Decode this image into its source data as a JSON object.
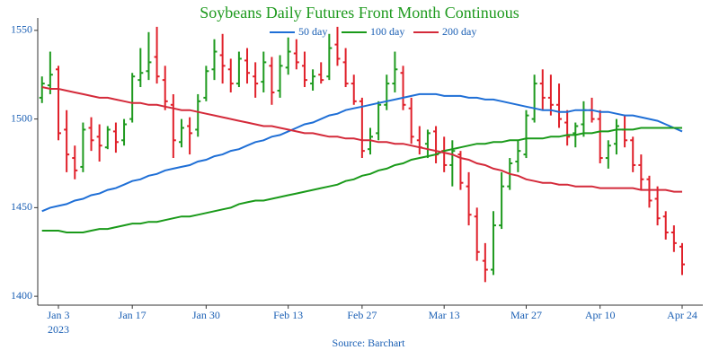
{
  "chart_data": {
    "type": "ohlc",
    "title": "Soybeans Daily Futures Front Month Continuous",
    "source": "Source: Barchart",
    "x_year_label": "2023",
    "categories": [
      null,
      null,
      "Jan 3",
      null,
      null,
      null,
      null,
      null,
      null,
      null,
      null,
      "Jan 17",
      null,
      null,
      null,
      null,
      null,
      null,
      null,
      null,
      "Jan 30",
      null,
      null,
      null,
      null,
      null,
      null,
      null,
      null,
      null,
      "Feb 13",
      null,
      null,
      null,
      null,
      null,
      null,
      null,
      null,
      "Feb 27",
      null,
      null,
      null,
      null,
      null,
      null,
      null,
      null,
      null,
      "Mar 13",
      null,
      null,
      null,
      null,
      null,
      null,
      null,
      null,
      null,
      "Mar 27",
      null,
      null,
      null,
      null,
      null,
      null,
      null,
      null,
      "Apr 10",
      null,
      null,
      null,
      null,
      null,
      null,
      null,
      null,
      null,
      "Apr 24"
    ],
    "open": [
      1512,
      1519,
      1528,
      1494,
      1478,
      1473,
      1495,
      1490,
      1484,
      1493,
      1488,
      1500,
      1522,
      1527,
      1535,
      1522,
      1508,
      1487,
      1496,
      1494,
      1512,
      1528,
      1536,
      1528,
      1520,
      1533,
      1524,
      1521,
      1530,
      1516,
      1529,
      1537,
      1530,
      1520,
      1525,
      1524,
      1542,
      1532,
      1520,
      1510,
      1483,
      1492,
      1508,
      1520,
      1526,
      1506,
      1488,
      1486,
      1493,
      1482,
      1474,
      1480,
      1462,
      1445,
      1420,
      1415,
      1440,
      1462,
      1476,
      1480,
      1500,
      1520,
      1512,
      1508,
      1498,
      1492,
      1497,
      1505,
      1500,
      1478,
      1486,
      1494,
      1488,
      1474,
      1466,
      1455,
      1445,
      1436,
      1428
    ],
    "high": [
      1524,
      1538,
      1530,
      1505,
      1485,
      1498,
      1501,
      1497,
      1496,
      1498,
      1500,
      1526,
      1540,
      1549,
      1552,
      1530,
      1514,
      1500,
      1501,
      1514,
      1530,
      1545,
      1548,
      1534,
      1538,
      1540,
      1532,
      1538,
      1535,
      1536,
      1546,
      1545,
      1538,
      1528,
      1532,
      1548,
      1552,
      1540,
      1525,
      1512,
      1495,
      1510,
      1525,
      1538,
      1530,
      1512,
      1496,
      1494,
      1496,
      1490,
      1488,
      1482,
      1470,
      1450,
      1430,
      1448,
      1470,
      1478,
      1488,
      1505,
      1525,
      1528,
      1525,
      1520,
      1505,
      1498,
      1510,
      1512,
      1505,
      1488,
      1500,
      1502,
      1490,
      1480,
      1468,
      1462,
      1448,
      1440,
      1430
    ],
    "low": [
      1509,
      1514,
      1488,
      1470,
      1466,
      1470,
      1482,
      1476,
      1483,
      1481,
      1485,
      1498,
      1518,
      1522,
      1520,
      1505,
      1478,
      1484,
      1480,
      1490,
      1510,
      1522,
      1520,
      1515,
      1518,
      1520,
      1512,
      1515,
      1508,
      1512,
      1525,
      1528,
      1518,
      1516,
      1520,
      1522,
      1530,
      1518,
      1508,
      1478,
      1480,
      1488,
      1505,
      1515,
      1505,
      1486,
      1480,
      1478,
      1475,
      1470,
      1462,
      1460,
      1440,
      1420,
      1408,
      1412,
      1438,
      1460,
      1470,
      1478,
      1498,
      1505,
      1502,
      1495,
      1485,
      1484,
      1490,
      1498,
      1475,
      1472,
      1480,
      1484,
      1470,
      1460,
      1450,
      1440,
      1432,
      1425,
      1412
    ],
    "close": [
      1520,
      1525,
      1492,
      1480,
      1471,
      1494,
      1488,
      1485,
      1494,
      1487,
      1497,
      1524,
      1526,
      1532,
      1524,
      1510,
      1488,
      1495,
      1492,
      1510,
      1527,
      1538,
      1530,
      1520,
      1534,
      1526,
      1520,
      1532,
      1515,
      1530,
      1538,
      1532,
      1522,
      1524,
      1522,
      1540,
      1534,
      1520,
      1510,
      1482,
      1490,
      1508,
      1520,
      1528,
      1508,
      1490,
      1484,
      1492,
      1480,
      1474,
      1482,
      1464,
      1446,
      1425,
      1415,
      1440,
      1462,
      1475,
      1482,
      1502,
      1520,
      1512,
      1508,
      1500,
      1490,
      1496,
      1505,
      1500,
      1478,
      1485,
      1496,
      1488,
      1474,
      1466,
      1454,
      1444,
      1436,
      1430,
      1418
    ],
    "up_color": "#1e9a1e",
    "down_color": "#e0202a",
    "series": [
      {
        "name": "50 day",
        "color": "#1f6fd6",
        "values": [
          1448,
          1450,
          1451,
          1452,
          1454,
          1455,
          1457,
          1458,
          1460,
          1461,
          1463,
          1465,
          1466,
          1468,
          1469,
          1471,
          1472,
          1473,
          1474,
          1476,
          1477,
          1479,
          1480,
          1482,
          1483,
          1485,
          1487,
          1488,
          1490,
          1491,
          1493,
          1495,
          1497,
          1498,
          1500,
          1502,
          1503,
          1505,
          1506,
          1507,
          1508,
          1509,
          1510,
          1511,
          1512,
          1513,
          1514,
          1514,
          1514,
          1513,
          1513,
          1513,
          1512,
          1512,
          1511,
          1511,
          1510,
          1509,
          1508,
          1507,
          1506,
          1505,
          1505,
          1504,
          1504,
          1505,
          1505,
          1505,
          1504,
          1504,
          1503,
          1502,
          1502,
          1501,
          1500,
          1499,
          1497,
          1495,
          1493
        ]
      },
      {
        "name": "100 day",
        "color": "#1a9a1a",
        "values": [
          1437,
          1437,
          1437,
          1436,
          1436,
          1436,
          1437,
          1438,
          1438,
          1439,
          1440,
          1441,
          1441,
          1442,
          1442,
          1443,
          1444,
          1445,
          1445,
          1446,
          1447,
          1448,
          1449,
          1450,
          1452,
          1453,
          1454,
          1454,
          1455,
          1456,
          1457,
          1458,
          1459,
          1460,
          1461,
          1462,
          1463,
          1465,
          1466,
          1468,
          1469,
          1471,
          1472,
          1474,
          1475,
          1477,
          1478,
          1479,
          1480,
          1482,
          1483,
          1484,
          1485,
          1486,
          1486,
          1487,
          1487,
          1488,
          1488,
          1489,
          1489,
          1489,
          1490,
          1490,
          1491,
          1491,
          1492,
          1492,
          1493,
          1493,
          1494,
          1494,
          1494,
          1495,
          1495,
          1495,
          1495,
          1495,
          1495
        ]
      },
      {
        "name": "200 day",
        "color": "#d42a3a",
        "values": [
          1518,
          1517,
          1517,
          1516,
          1515,
          1514,
          1513,
          1512,
          1512,
          1511,
          1510,
          1509,
          1509,
          1508,
          1508,
          1507,
          1506,
          1505,
          1505,
          1504,
          1503,
          1502,
          1501,
          1500,
          1499,
          1498,
          1497,
          1496,
          1496,
          1495,
          1494,
          1493,
          1492,
          1492,
          1491,
          1490,
          1490,
          1489,
          1489,
          1488,
          1488,
          1487,
          1487,
          1486,
          1486,
          1485,
          1484,
          1483,
          1482,
          1481,
          1480,
          1478,
          1477,
          1475,
          1474,
          1472,
          1471,
          1469,
          1468,
          1466,
          1465,
          1464,
          1464,
          1463,
          1463,
          1462,
          1462,
          1462,
          1461,
          1461,
          1461,
          1461,
          1461,
          1460,
          1460,
          1460,
          1460,
          1459,
          1459
        ]
      }
    ],
    "ylim": [
      1395,
      1557
    ],
    "yticks": [
      1400,
      1450,
      1500,
      1550
    ],
    "grid": false
  }
}
